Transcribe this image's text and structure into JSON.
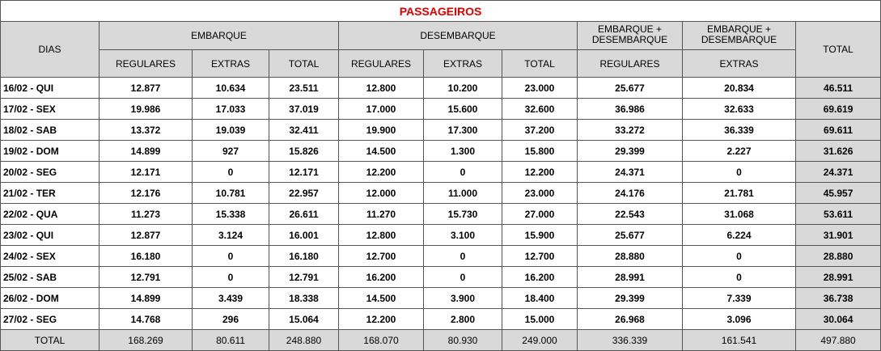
{
  "title": "PASSAGEIROS",
  "header": {
    "dias": "DIAS",
    "groups": [
      "EMBARQUE",
      "DESEMBARQUE",
      "EMBARQUE +\nDESEMBARQUE",
      "EMBARQUE +\nDESEMBARQUE"
    ],
    "total": "TOTAL",
    "subheaders": [
      "REGULARES",
      "EXTRAS",
      "TOTAL",
      "REGULARES",
      "EXTRAS",
      "TOTAL",
      "REGULARES",
      "EXTRAS"
    ]
  },
  "table": {
    "rows": [
      [
        "16/02 - QUI",
        "12.877",
        "10.634",
        "23.511",
        "12.800",
        "10.200",
        "23.000",
        "25.677",
        "20.834",
        "46.511"
      ],
      [
        "17/02 - SEX",
        "19.986",
        "17.033",
        "37.019",
        "17.000",
        "15.600",
        "32.600",
        "36.986",
        "32.633",
        "69.619"
      ],
      [
        "18/02 - SAB",
        "13.372",
        "19.039",
        "32.411",
        "19.900",
        "17.300",
        "37.200",
        "33.272",
        "36.339",
        "69.611"
      ],
      [
        "19/02 - DOM",
        "14.899",
        "927",
        "15.826",
        "14.500",
        "1.300",
        "15.800",
        "29.399",
        "2.227",
        "31.626"
      ],
      [
        "20/02 - SEG",
        "12.171",
        "0",
        "12.171",
        "12.200",
        "0",
        "12.200",
        "24.371",
        "0",
        "24.371"
      ],
      [
        "21/02 - TER",
        "12.176",
        "10.781",
        "22.957",
        "12.000",
        "11.000",
        "23.000",
        "24.176",
        "21.781",
        "45.957"
      ],
      [
        "22/02 - QUA",
        "11.273",
        "15.338",
        "26.611",
        "11.270",
        "15.730",
        "27.000",
        "22.543",
        "31.068",
        "53.611"
      ],
      [
        "23/02 - QUI",
        "12.877",
        "3.124",
        "16.001",
        "12.800",
        "3.100",
        "15.900",
        "25.677",
        "6.224",
        "31.901"
      ],
      [
        "24/02 - SEX",
        "16.180",
        "0",
        "16.180",
        "12.700",
        "0",
        "12.700",
        "28.880",
        "0",
        "28.880"
      ],
      [
        "25/02 - SAB",
        "12.791",
        "0",
        "12.791",
        "16.200",
        "0",
        "16.200",
        "28.991",
        "0",
        "28.991"
      ],
      [
        "26/02 - DOM",
        "14.899",
        "3.439",
        "18.338",
        "14.500",
        "3.900",
        "18.400",
        "29.399",
        "7.339",
        "36.738"
      ],
      [
        "27/02 - SEG",
        "14.768",
        "296",
        "15.064",
        "12.200",
        "2.800",
        "15.000",
        "26.968",
        "3.096",
        "30.064"
      ]
    ],
    "total": [
      "TOTAL",
      "168.269",
      "80.611",
      "248.880",
      "168.070",
      "80.930",
      "249.000",
      "336.339",
      "161.541",
      "497.880"
    ]
  }
}
